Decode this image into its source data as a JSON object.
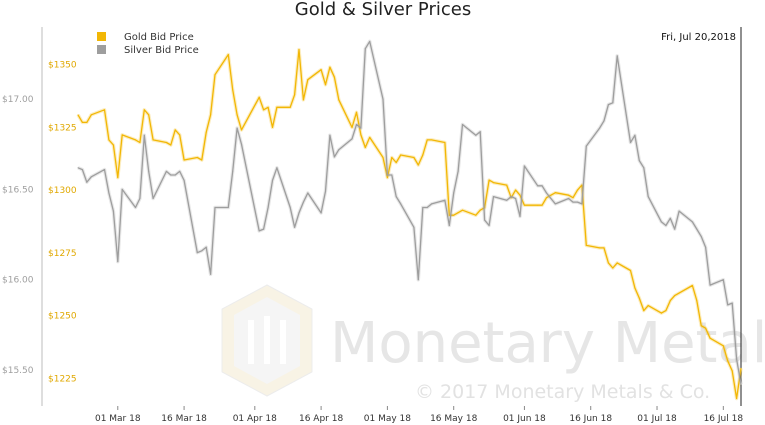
{
  "chart_data": {
    "type": "line",
    "title": "Gold & Silver Prices",
    "date_label": "Fri, Jul 20,2018",
    "watermark": "Monetary Metals",
    "copyright": "© 2017 Monetary Metals & Co.",
    "x_tick_labels": [
      "01 Mar 18",
      "16 Mar 18",
      "01 Apr 18",
      "16 Apr 18",
      "01 May 18",
      "16 May 18",
      "01 Jun 18",
      "16 Jun 18",
      "01 Jul 18",
      "16 Jul 18"
    ],
    "gold_axis": {
      "ticks": [
        1225,
        1250,
        1275,
        1300,
        1325,
        1350
      ],
      "tick_labels": [
        "$1225",
        "$1250",
        "$1275",
        "$1300",
        "$1325",
        "$1350"
      ],
      "ylim": [
        1214,
        1365
      ]
    },
    "silver_axis": {
      "ticks": [
        15.5,
        16.0,
        16.5,
        17.0
      ],
      "tick_labels": [
        "$15.50",
        "$16.00",
        "$16.50",
        "$17.00"
      ],
      "ylim": [
        15.3,
        17.4
      ]
    },
    "legend": {
      "position": "top-left"
    },
    "colors": {
      "gold": "#f2b705",
      "silver": "#9e9e9e",
      "watermark": "#e6e6e6"
    },
    "x_range": [
      "2018-02-20",
      "2018-07-20"
    ],
    "series": [
      {
        "name": "Gold Bid Price",
        "axis": "left",
        "color": "#f2b705",
        "points": [
          [
            "2018-02-20",
            1330
          ],
          [
            "2018-02-21",
            1327
          ],
          [
            "2018-02-22",
            1327
          ],
          [
            "2018-02-23",
            1330
          ],
          [
            "2018-02-26",
            1332
          ],
          [
            "2018-02-27",
            1320
          ],
          [
            "2018-02-28",
            1318
          ],
          [
            "2018-03-01",
            1305
          ],
          [
            "2018-03-02",
            1322
          ],
          [
            "2018-03-05",
            1320
          ],
          [
            "2018-03-06",
            1319
          ],
          [
            "2018-03-07",
            1332
          ],
          [
            "2018-03-08",
            1330
          ],
          [
            "2018-03-09",
            1320
          ],
          [
            "2018-03-12",
            1319
          ],
          [
            "2018-03-13",
            1318
          ],
          [
            "2018-03-14",
            1324
          ],
          [
            "2018-03-15",
            1322
          ],
          [
            "2018-03-16",
            1312
          ],
          [
            "2018-03-19",
            1313
          ],
          [
            "2018-03-20",
            1312
          ],
          [
            "2018-03-21",
            1323
          ],
          [
            "2018-03-22",
            1330
          ],
          [
            "2018-03-23",
            1346
          ],
          [
            "2018-03-26",
            1354
          ],
          [
            "2018-03-27",
            1340
          ],
          [
            "2018-03-28",
            1330
          ],
          [
            "2018-03-29",
            1324
          ],
          [
            "2018-04-02",
            1337
          ],
          [
            "2018-04-03",
            1332
          ],
          [
            "2018-04-04",
            1333
          ],
          [
            "2018-04-05",
            1325
          ],
          [
            "2018-04-06",
            1333
          ],
          [
            "2018-04-09",
            1333
          ],
          [
            "2018-04-10",
            1338
          ],
          [
            "2018-04-11",
            1356
          ],
          [
            "2018-04-12",
            1336
          ],
          [
            "2018-04-13",
            1344
          ],
          [
            "2018-04-16",
            1348
          ],
          [
            "2018-04-17",
            1342
          ],
          [
            "2018-04-18",
            1349
          ],
          [
            "2018-04-19",
            1345
          ],
          [
            "2018-04-20",
            1336
          ],
          [
            "2018-04-23",
            1325
          ],
          [
            "2018-04-24",
            1331
          ],
          [
            "2018-04-25",
            1322
          ],
          [
            "2018-04-26",
            1317
          ],
          [
            "2018-04-27",
            1321
          ],
          [
            "2018-04-30",
            1313
          ],
          [
            "2018-05-01",
            1305
          ],
          [
            "2018-05-02",
            1313
          ],
          [
            "2018-05-03",
            1311
          ],
          [
            "2018-05-04",
            1314
          ],
          [
            "2018-05-07",
            1313
          ],
          [
            "2018-05-08",
            1310
          ],
          [
            "2018-05-09",
            1314
          ],
          [
            "2018-05-10",
            1320
          ],
          [
            "2018-05-11",
            1320
          ],
          [
            "2018-05-14",
            1319
          ],
          [
            "2018-05-15",
            1290
          ],
          [
            "2018-05-16",
            1290
          ],
          [
            "2018-05-17",
            1291
          ],
          [
            "2018-05-18",
            1292
          ],
          [
            "2018-05-21",
            1290
          ],
          [
            "2018-05-22",
            1292
          ],
          [
            "2018-05-23",
            1293
          ],
          [
            "2018-05-24",
            1304
          ],
          [
            "2018-05-25",
            1303
          ],
          [
            "2018-05-28",
            1302
          ],
          [
            "2018-05-29",
            1297
          ],
          [
            "2018-05-30",
            1300
          ],
          [
            "2018-05-31",
            1298
          ],
          [
            "2018-06-01",
            1294
          ],
          [
            "2018-06-04",
            1294
          ],
          [
            "2018-06-05",
            1294
          ],
          [
            "2018-06-06",
            1297
          ],
          [
            "2018-06-07",
            1298
          ],
          [
            "2018-06-08",
            1299
          ],
          [
            "2018-06-11",
            1298
          ],
          [
            "2018-06-12",
            1297
          ],
          [
            "2018-06-13",
            1300
          ],
          [
            "2018-06-14",
            1302
          ],
          [
            "2018-06-15",
            1278
          ],
          [
            "2018-06-18",
            1277
          ],
          [
            "2018-06-19",
            1277
          ],
          [
            "2018-06-20",
            1271
          ],
          [
            "2018-06-21",
            1269
          ],
          [
            "2018-06-22",
            1271
          ],
          [
            "2018-06-25",
            1268
          ],
          [
            "2018-06-26",
            1261
          ],
          [
            "2018-06-27",
            1257
          ],
          [
            "2018-06-28",
            1252
          ],
          [
            "2018-06-29",
            1254
          ],
          [
            "2018-07-02",
            1251
          ],
          [
            "2018-07-03",
            1252
          ],
          [
            "2018-07-04",
            1256
          ],
          [
            "2018-07-05",
            1258
          ],
          [
            "2018-07-06",
            1259
          ],
          [
            "2018-07-09",
            1262
          ],
          [
            "2018-07-10",
            1256
          ],
          [
            "2018-07-11",
            1246
          ],
          [
            "2018-07-12",
            1245
          ],
          [
            "2018-07-13",
            1241
          ],
          [
            "2018-07-16",
            1238
          ],
          [
            "2018-07-17",
            1232
          ],
          [
            "2018-07-18",
            1228
          ],
          [
            "2018-07-19",
            1217
          ],
          [
            "2018-07-20",
            1229
          ]
        ]
      },
      {
        "name": "Silver Bid Price",
        "axis": "right",
        "color": "#9e9e9e",
        "points": [
          [
            "2018-02-20",
            16.62
          ],
          [
            "2018-02-21",
            16.61
          ],
          [
            "2018-02-22",
            16.54
          ],
          [
            "2018-02-23",
            16.57
          ],
          [
            "2018-02-26",
            16.61
          ],
          [
            "2018-02-27",
            16.48
          ],
          [
            "2018-02-28",
            16.38
          ],
          [
            "2018-03-01",
            16.1
          ],
          [
            "2018-03-02",
            16.5
          ],
          [
            "2018-03-05",
            16.4
          ],
          [
            "2018-03-06",
            16.45
          ],
          [
            "2018-03-07",
            16.8
          ],
          [
            "2018-03-08",
            16.6
          ],
          [
            "2018-03-09",
            16.45
          ],
          [
            "2018-03-12",
            16.6
          ],
          [
            "2018-03-13",
            16.58
          ],
          [
            "2018-03-14",
            16.58
          ],
          [
            "2018-03-15",
            16.6
          ],
          [
            "2018-03-16",
            16.55
          ],
          [
            "2018-03-19",
            16.15
          ],
          [
            "2018-03-20",
            16.16
          ],
          [
            "2018-03-21",
            16.18
          ],
          [
            "2018-03-22",
            16.03
          ],
          [
            "2018-03-23",
            16.4
          ],
          [
            "2018-03-26",
            16.4
          ],
          [
            "2018-03-27",
            16.6
          ],
          [
            "2018-03-28",
            16.84
          ],
          [
            "2018-03-29",
            16.75
          ],
          [
            "2018-04-02",
            16.27
          ],
          [
            "2018-04-03",
            16.28
          ],
          [
            "2018-04-04",
            16.4
          ],
          [
            "2018-04-05",
            16.55
          ],
          [
            "2018-04-06",
            16.62
          ],
          [
            "2018-04-09",
            16.4
          ],
          [
            "2018-04-10",
            16.29
          ],
          [
            "2018-04-11",
            16.37
          ],
          [
            "2018-04-12",
            16.43
          ],
          [
            "2018-04-13",
            16.48
          ],
          [
            "2018-04-16",
            16.37
          ],
          [
            "2018-04-17",
            16.49
          ],
          [
            "2018-04-18",
            16.8
          ],
          [
            "2018-04-19",
            16.68
          ],
          [
            "2018-04-20",
            16.72
          ],
          [
            "2018-04-23",
            16.78
          ],
          [
            "2018-04-24",
            16.86
          ],
          [
            "2018-04-25",
            16.84
          ],
          [
            "2018-04-26",
            17.28
          ],
          [
            "2018-04-27",
            17.32
          ],
          [
            "2018-04-30",
            17.0
          ],
          [
            "2018-05-01",
            16.58
          ],
          [
            "2018-05-02",
            16.58
          ],
          [
            "2018-05-03",
            16.46
          ],
          [
            "2018-05-04",
            16.42
          ],
          [
            "2018-05-07",
            16.29
          ],
          [
            "2018-05-08",
            16.0
          ],
          [
            "2018-05-09",
            16.4
          ],
          [
            "2018-05-10",
            16.4
          ],
          [
            "2018-05-11",
            16.42
          ],
          [
            "2018-05-14",
            16.44
          ],
          [
            "2018-05-15",
            16.3
          ],
          [
            "2018-05-16",
            16.48
          ],
          [
            "2018-05-17",
            16.6
          ],
          [
            "2018-05-18",
            16.86
          ],
          [
            "2018-05-21",
            16.8
          ],
          [
            "2018-05-22",
            16.82
          ],
          [
            "2018-05-23",
            16.33
          ],
          [
            "2018-05-24",
            16.3
          ],
          [
            "2018-05-25",
            16.46
          ],
          [
            "2018-05-28",
            16.44
          ],
          [
            "2018-05-29",
            16.46
          ],
          [
            "2018-05-30",
            16.45
          ],
          [
            "2018-05-31",
            16.35
          ],
          [
            "2018-06-01",
            16.63
          ],
          [
            "2018-06-04",
            16.52
          ],
          [
            "2018-06-05",
            16.52
          ],
          [
            "2018-06-06",
            16.48
          ],
          [
            "2018-06-07",
            16.45
          ],
          [
            "2018-06-08",
            16.42
          ],
          [
            "2018-06-11",
            16.45
          ],
          [
            "2018-06-12",
            16.43
          ],
          [
            "2018-06-13",
            16.43
          ],
          [
            "2018-06-14",
            16.42
          ],
          [
            "2018-06-15",
            16.74
          ],
          [
            "2018-06-18",
            16.84
          ],
          [
            "2018-06-19",
            16.88
          ],
          [
            "2018-06-20",
            16.97
          ],
          [
            "2018-06-21",
            16.98
          ],
          [
            "2018-06-22",
            17.24
          ],
          [
            "2018-06-25",
            16.76
          ],
          [
            "2018-06-26",
            16.8
          ],
          [
            "2018-06-27",
            16.66
          ],
          [
            "2018-06-28",
            16.62
          ],
          [
            "2018-06-29",
            16.46
          ],
          [
            "2018-07-02",
            16.32
          ],
          [
            "2018-07-03",
            16.3
          ],
          [
            "2018-07-04",
            16.34
          ],
          [
            "2018-07-05",
            16.28
          ],
          [
            "2018-07-06",
            16.38
          ],
          [
            "2018-07-09",
            16.32
          ],
          [
            "2018-07-10",
            16.28
          ],
          [
            "2018-07-11",
            16.24
          ],
          [
            "2018-07-12",
            16.18
          ],
          [
            "2018-07-13",
            15.97
          ],
          [
            "2018-07-16",
            16.0
          ],
          [
            "2018-07-17",
            15.86
          ],
          [
            "2018-07-18",
            15.87
          ],
          [
            "2018-07-19",
            15.56
          ],
          [
            "2018-07-20",
            15.42
          ]
        ]
      }
    ]
  }
}
